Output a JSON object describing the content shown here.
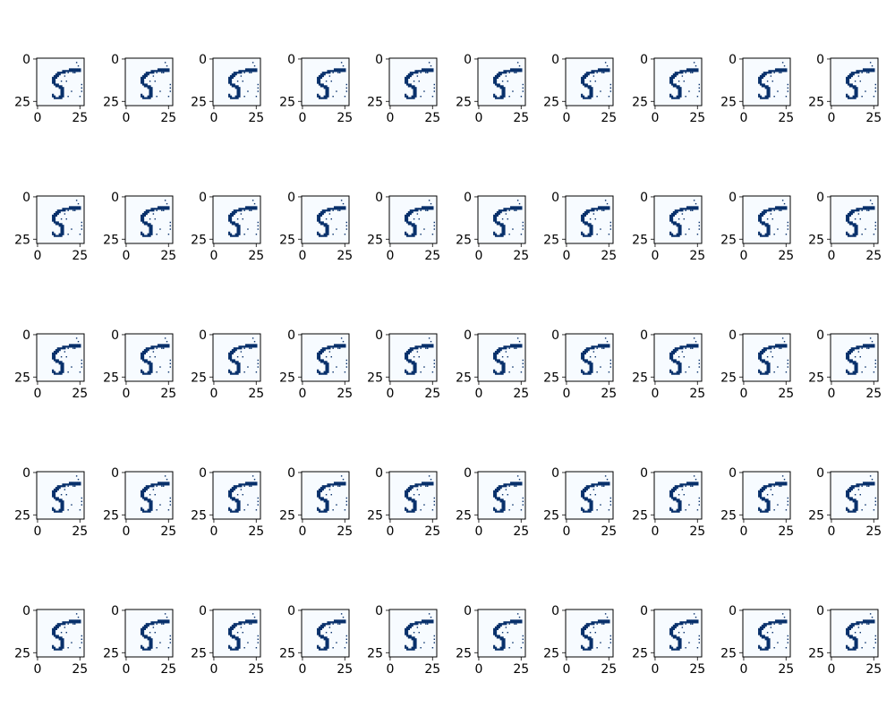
{
  "chart_data": {
    "type": "heatmap",
    "layout": {
      "rows": 5,
      "cols": 10
    },
    "panel_count": 50,
    "image_size": [
      28,
      28
    ],
    "colormap": "Blues",
    "colors": {
      "background": "#f7fbff",
      "ink": "#08306b",
      "axis": "#000000"
    },
    "grid": false,
    "xlim": [
      -0.5,
      27.5
    ],
    "ylim": [
      27.5,
      -0.5
    ],
    "xticks": [
      0,
      25
    ],
    "yticks": [
      0,
      25
    ],
    "xtick_labels": [
      "0",
      "25"
    ],
    "ytick_labels": [
      "0",
      "25"
    ],
    "title": "",
    "xlabel": "",
    "ylabel": "",
    "ink_pixels": [
      [
        19,
        6
      ],
      [
        20,
        6
      ],
      [
        21,
        6
      ],
      [
        22,
        6
      ],
      [
        23,
        6
      ],
      [
        24,
        6
      ],
      [
        25,
        6
      ],
      [
        15,
        7
      ],
      [
        16,
        7
      ],
      [
        17,
        7
      ],
      [
        18,
        7
      ],
      [
        19,
        7
      ],
      [
        20,
        7
      ],
      [
        21,
        7
      ],
      [
        22,
        7
      ],
      [
        23,
        7
      ],
      [
        24,
        7
      ],
      [
        25,
        7
      ],
      [
        12,
        8
      ],
      [
        13,
        8
      ],
      [
        14,
        8
      ],
      [
        15,
        8
      ],
      [
        16,
        8
      ],
      [
        11,
        9
      ],
      [
        12,
        9
      ],
      [
        13,
        9
      ],
      [
        10,
        10
      ],
      [
        11,
        10
      ],
      [
        12,
        10
      ],
      [
        9,
        11
      ],
      [
        10,
        11
      ],
      [
        11,
        11
      ],
      [
        9,
        12
      ],
      [
        10,
        12
      ],
      [
        9,
        13
      ],
      [
        10,
        13
      ],
      [
        9,
        14
      ],
      [
        10,
        14
      ],
      [
        10,
        15
      ],
      [
        11,
        15
      ],
      [
        12,
        15
      ],
      [
        11,
        16
      ],
      [
        12,
        16
      ],
      [
        13,
        16
      ],
      [
        14,
        16
      ],
      [
        13,
        17
      ],
      [
        14,
        17
      ],
      [
        15,
        17
      ],
      [
        14,
        18
      ],
      [
        15,
        18
      ],
      [
        14,
        19
      ],
      [
        15,
        19
      ],
      [
        14,
        20
      ],
      [
        15,
        20
      ],
      [
        9,
        21
      ],
      [
        14,
        21
      ],
      [
        15,
        21
      ],
      [
        9,
        22
      ],
      [
        10,
        22
      ],
      [
        13,
        22
      ],
      [
        14,
        22
      ],
      [
        15,
        22
      ],
      [
        10,
        23
      ],
      [
        11,
        23
      ],
      [
        12,
        23
      ],
      [
        13,
        23
      ],
      [
        14,
        23
      ]
    ],
    "speckle_pixels": [
      [
        23,
        2
      ],
      [
        24,
        4
      ],
      [
        18,
        8
      ],
      [
        22,
        8
      ],
      [
        21,
        8
      ],
      [
        16,
        10
      ],
      [
        14,
        13
      ],
      [
        17,
        13
      ],
      [
        26,
        15
      ],
      [
        26,
        17
      ],
      [
        20,
        19
      ],
      [
        26,
        19
      ],
      [
        18,
        22
      ],
      [
        25,
        22
      ]
    ]
  }
}
